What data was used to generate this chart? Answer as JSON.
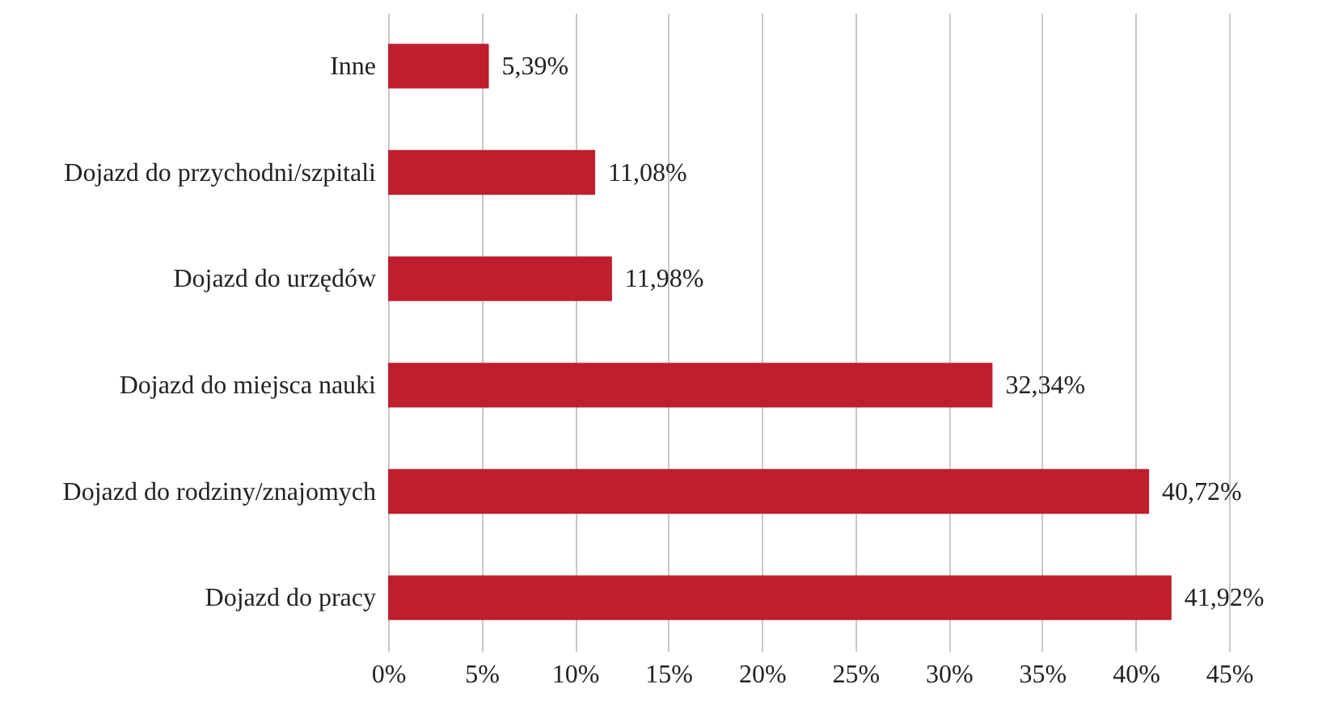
{
  "chart_data": {
    "type": "bar",
    "orientation": "horizontal",
    "categories": [
      "Inne",
      "Dojazd do przychodni/szpitali",
      "Dojazd do urzędów",
      "Dojazd do miejsca nauki",
      "Dojazd do rodziny/znajomych",
      "Dojazd do pracy"
    ],
    "values": [
      5.39,
      11.08,
      11.98,
      32.34,
      40.72,
      41.92
    ],
    "value_labels": [
      "5,39%",
      "11,08%",
      "11,98%",
      "32,34%",
      "40,72%",
      "41,92%"
    ],
    "color": "#be1e2d",
    "xlim": [
      0,
      45
    ],
    "xticks": [
      {
        "value": 0,
        "label": "0%"
      },
      {
        "value": 5,
        "label": "5%"
      },
      {
        "value": 10,
        "label": "10%"
      },
      {
        "value": 15,
        "label": "15%"
      },
      {
        "value": 20,
        "label": "20%"
      },
      {
        "value": 25,
        "label": "25%"
      },
      {
        "value": 30,
        "label": "30%"
      },
      {
        "value": 35,
        "label": "35%"
      },
      {
        "value": 40,
        "label": "40%"
      },
      {
        "value": 45,
        "label": "45%"
      }
    ],
    "grid": "x"
  }
}
